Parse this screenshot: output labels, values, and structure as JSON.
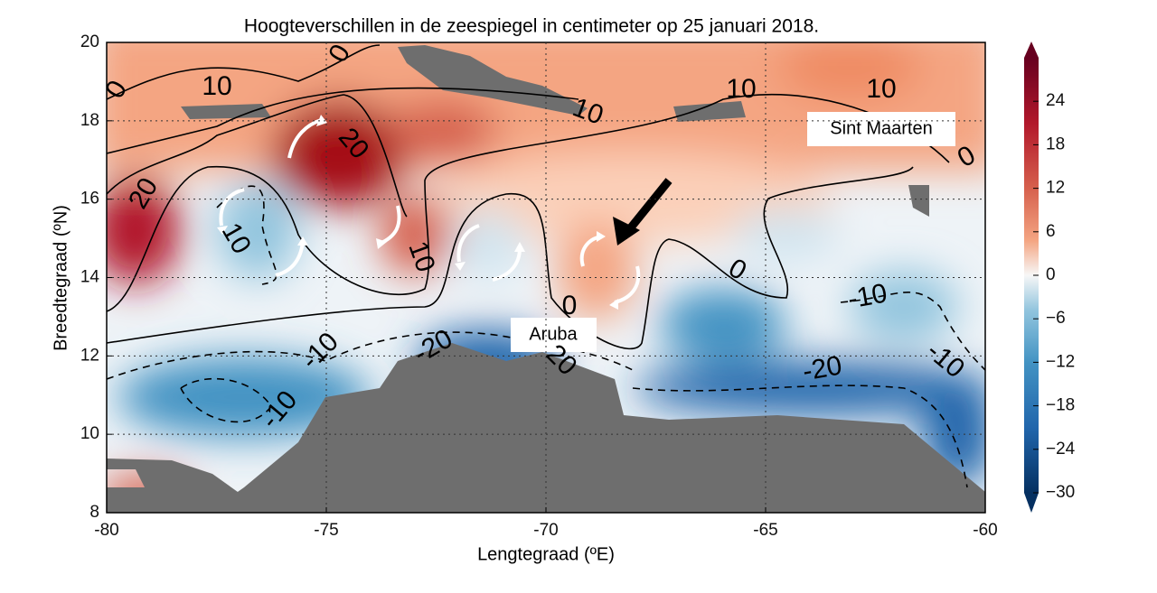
{
  "chart_data": {
    "type": "heatmap-map",
    "title": "Hoogteverschillen in de zeespiegel in centimeter op 25 januari 2018.",
    "x_label": "Lengtegraad (ºE)",
    "y_label": "Breedtegraad (ºN)",
    "xlim": [
      -80,
      -60
    ],
    "xticks": [
      -80,
      -75,
      -70,
      -65,
      -60
    ],
    "ylim": [
      8,
      20
    ],
    "yticks": [
      8,
      10,
      12,
      14,
      16,
      18,
      20
    ],
    "grid": true,
    "colorbar": {
      "lim": [
        -30,
        30
      ],
      "ticks": [
        {
          "value": -30,
          "label": "−30"
        },
        {
          "value": -24,
          "label": "−24"
        },
        {
          "value": -18,
          "label": "−18"
        },
        {
          "value": -12,
          "label": "−12"
        },
        {
          "value": -6,
          "label": "−6"
        },
        0,
        6,
        12,
        18,
        24
      ]
    },
    "annotations": [
      "Sint Maarten",
      "Aruba"
    ],
    "contour_labels": [
      "0",
      "10",
      "0",
      "10",
      "10",
      "10",
      "20",
      "20",
      "10",
      "10",
      "0",
      "0",
      "0",
      "-10",
      "-20",
      "-10",
      "20",
      "-20",
      "-10",
      "-10"
    ]
  }
}
